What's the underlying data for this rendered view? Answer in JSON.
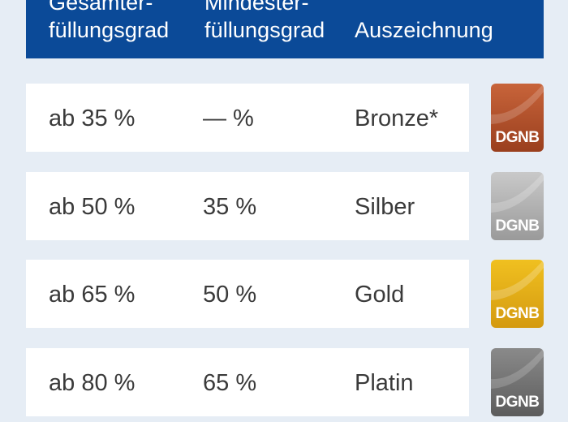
{
  "header": {
    "col1": {
      "line1": "Gesamter-",
      "line2": "füllungsgrad"
    },
    "col2": {
      "line1": "Mindester-",
      "line2": "füllungsgrad"
    },
    "col3": "Auszeichnung"
  },
  "rows": [
    {
      "total": "ab 35 %",
      "minimum": "— %",
      "award": "Bronze*",
      "badge_text": "DGNB",
      "badge_color_top": "#c8643a",
      "badge_color_bottom": "#9a3f1e"
    },
    {
      "total": "ab 50 %",
      "minimum": "35 %",
      "award": "Silber",
      "badge_text": "DGNB",
      "badge_color_top": "#c9c9c9",
      "badge_color_bottom": "#9a9a9a"
    },
    {
      "total": "ab 65 %",
      "minimum": "50 %",
      "award": "Gold",
      "badge_text": "DGNB",
      "badge_color_top": "#f0c020",
      "badge_color_bottom": "#d49a10"
    },
    {
      "total": "ab 80 %",
      "minimum": "65 %",
      "award": "Platin",
      "badge_text": "DGNB",
      "badge_color_top": "#8a8a8a",
      "badge_color_bottom": "#5c5c5c"
    }
  ],
  "colors": {
    "header_bg": "#0b4a98",
    "page_bg": "#e6edf5",
    "row_bg": "#ffffff",
    "text": "#3a3a3a"
  }
}
